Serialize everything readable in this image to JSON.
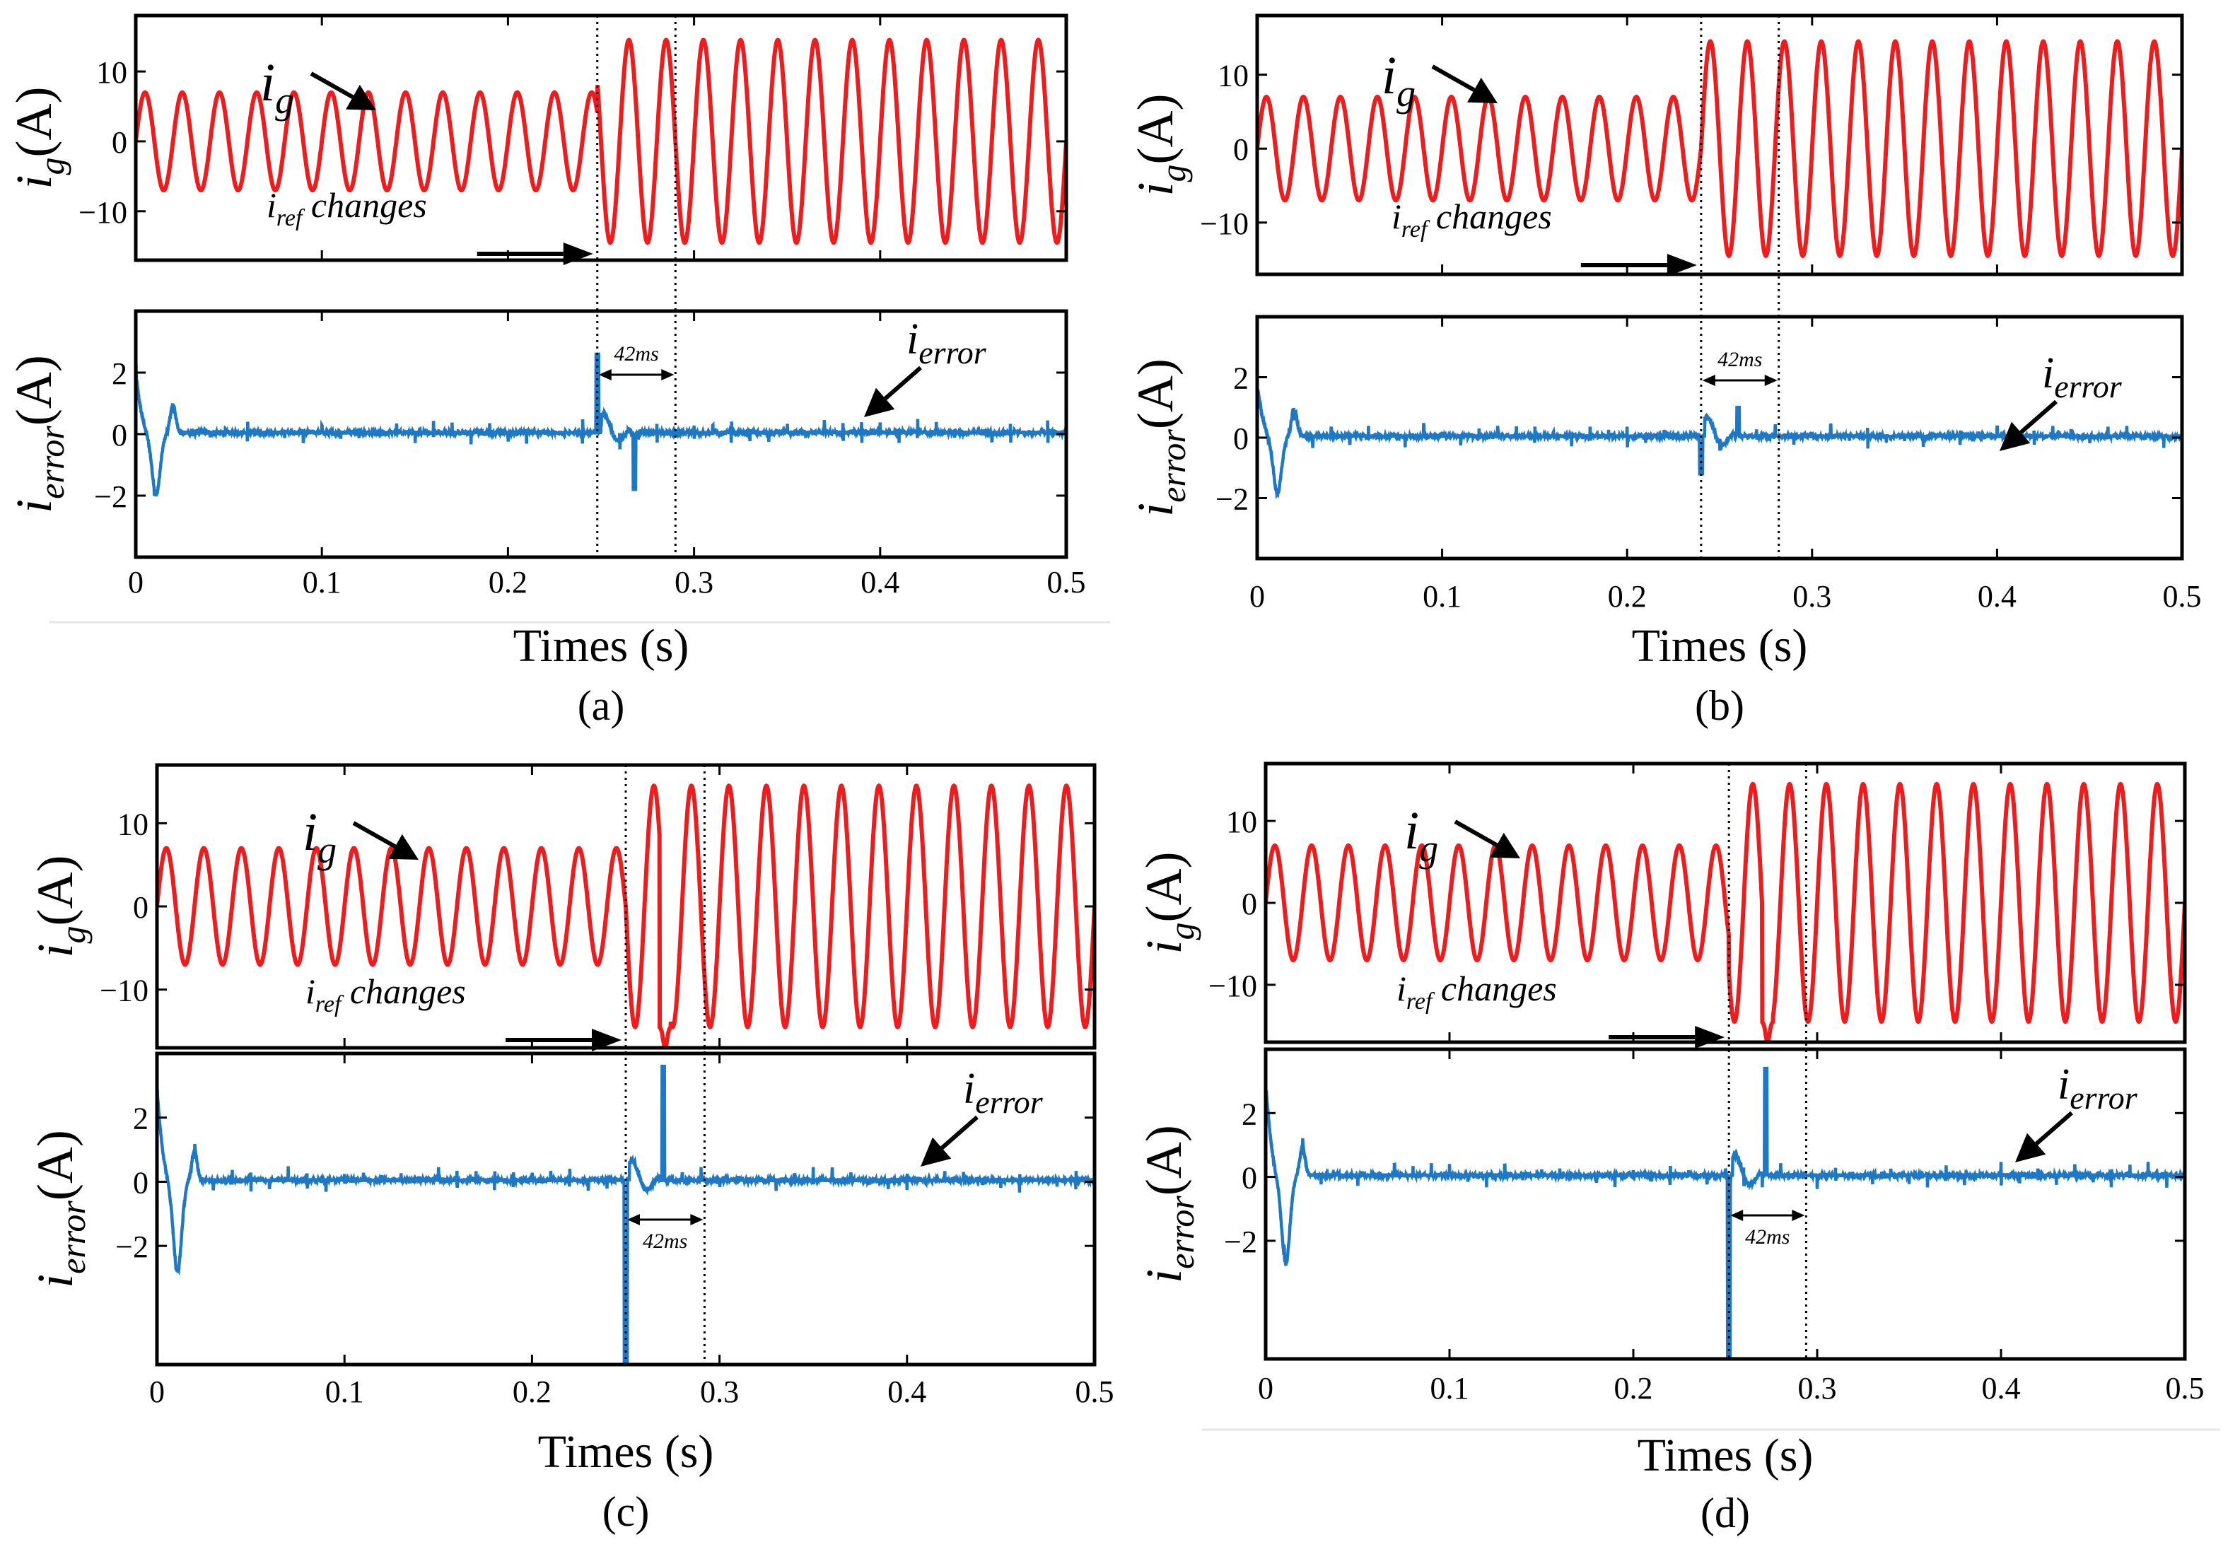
{
  "figure_labels": [
    "(a)",
    "(b)",
    "(c)",
    "(d)"
  ],
  "chart_data": [
    {
      "panel": "(a)",
      "type": "line",
      "xlabel": "Times (s)",
      "xlim": [
        0,
        0.5
      ],
      "xticks": [
        "0",
        "0.1",
        "0.2",
        "0.3",
        "0.4",
        "0.5"
      ],
      "grid": false,
      "top": {
        "ylabel": "ig(A)",
        "ylim": [
          -17,
          18
        ],
        "yticks": [
          "10",
          "0",
          "-10"
        ],
        "series": [
          {
            "name": "ig",
            "color": "#ee1c1c",
            "frequency_hz": 50,
            "amplitude_before": 7,
            "amplitude_after": 14.5,
            "step_time": 0.248
          }
        ],
        "annotations": {
          "series_label": "ig",
          "change_label": "iref changes"
        }
      },
      "bottom": {
        "ylabel": "ierror(A)",
        "ylim": [
          -4,
          4
        ],
        "yticks": [
          "2",
          "0",
          "-2"
        ],
        "series": [
          {
            "name": "ierror",
            "color": "#1f78c4",
            "initial_peak": 1.9,
            "initial_dip": -1.9,
            "step_spike": 2.6,
            "secondary_spike": -1.8
          }
        ],
        "annotations": {
          "series_label": "ierror",
          "duration_label": "42ms"
        },
        "markers": [
          0.248,
          0.29
        ]
      }
    },
    {
      "panel": "(b)",
      "type": "line",
      "xlabel": "Times (s)",
      "xlim": [
        0,
        0.5
      ],
      "xticks": [
        "0",
        "0.1",
        "0.2",
        "0.3",
        "0.4",
        "0.5"
      ],
      "grid": false,
      "top": {
        "ylabel": "ig(A)",
        "ylim": [
          -17,
          18
        ],
        "yticks": [
          "10",
          "0",
          "-10"
        ],
        "series": [
          {
            "name": "ig",
            "color": "#ee1c1c",
            "frequency_hz": 50,
            "amplitude_before": 7,
            "amplitude_after": 14.5,
            "step_time": 0.24
          }
        ],
        "annotations": {
          "series_label": "ig",
          "change_label": "iref changes"
        }
      },
      "bottom": {
        "ylabel": "ierror(A)",
        "ylim": [
          -4,
          4
        ],
        "yticks": [
          "2",
          "0",
          "-2"
        ],
        "series": [
          {
            "name": "ierror",
            "color": "#1f78c4",
            "initial_peak": 1.7,
            "initial_dip": -1.8,
            "step_spike": -1.2,
            "secondary_spike": 1.0
          }
        ],
        "annotations": {
          "series_label": "ierror",
          "duration_label": "42ms"
        },
        "markers": [
          0.24,
          0.282
        ]
      }
    },
    {
      "panel": "(c)",
      "type": "line",
      "xlabel": "Times (s)",
      "xlim": [
        0,
        0.5
      ],
      "xticks": [
        "0",
        "0.1",
        "0.2",
        "0.3",
        "0.4",
        "0.5"
      ],
      "grid": false,
      "top": {
        "ylabel": "ig(A)",
        "ylim": [
          -17,
          17
        ],
        "yticks": [
          "10",
          "0",
          "-10"
        ],
        "series": [
          {
            "name": "ig",
            "color": "#ee1c1c",
            "frequency_hz": 50,
            "amplitude_before": 7,
            "amplitude_after": 14.5,
            "step_time": 0.25
          }
        ],
        "annotations": {
          "series_label": "ig",
          "change_label": "iref changes"
        }
      },
      "bottom": {
        "ylabel": "ierror(A)",
        "ylim": [
          -5.7,
          4
        ],
        "yticks": [
          "2",
          "0",
          "-2"
        ],
        "series": [
          {
            "name": "ierror",
            "color": "#1f78c4",
            "initial_peak": 2.8,
            "initial_dip": -2.7,
            "step_spike": -5.6,
            "secondary_spike": 3.6
          }
        ],
        "annotations": {
          "series_label": "ierror",
          "duration_label": "42ms"
        },
        "markers": [
          0.25,
          0.292
        ]
      }
    },
    {
      "panel": "(d)",
      "type": "line",
      "xlabel": "Times (s)",
      "xlim": [
        0,
        0.5
      ],
      "xticks": [
        "0",
        "0.1",
        "0.2",
        "0.3",
        "0.4",
        "0.5"
      ],
      "grid": false,
      "top": {
        "ylabel": "ig(A)",
        "ylim": [
          -17,
          17
        ],
        "yticks": [
          "10",
          "0",
          "-10"
        ],
        "series": [
          {
            "name": "ig",
            "color": "#ee1c1c",
            "frequency_hz": 50,
            "amplitude_before": 7,
            "amplitude_after": 14.5,
            "step_time": 0.252
          }
        ],
        "annotations": {
          "series_label": "ig",
          "change_label": "iref changes"
        }
      },
      "bottom": {
        "ylabel": "ierror(A)",
        "ylim": [
          -5.7,
          4
        ],
        "yticks": [
          "2",
          "0",
          "-2"
        ],
        "series": [
          {
            "name": "ierror",
            "color": "#1f78c4",
            "initial_peak": 2.9,
            "initial_dip": -2.6,
            "step_spike": -5.6,
            "secondary_spike": 3.4
          }
        ],
        "annotations": {
          "series_label": "ierror",
          "duration_label": "42ms"
        },
        "markers": [
          0.252,
          0.294
        ]
      }
    }
  ]
}
